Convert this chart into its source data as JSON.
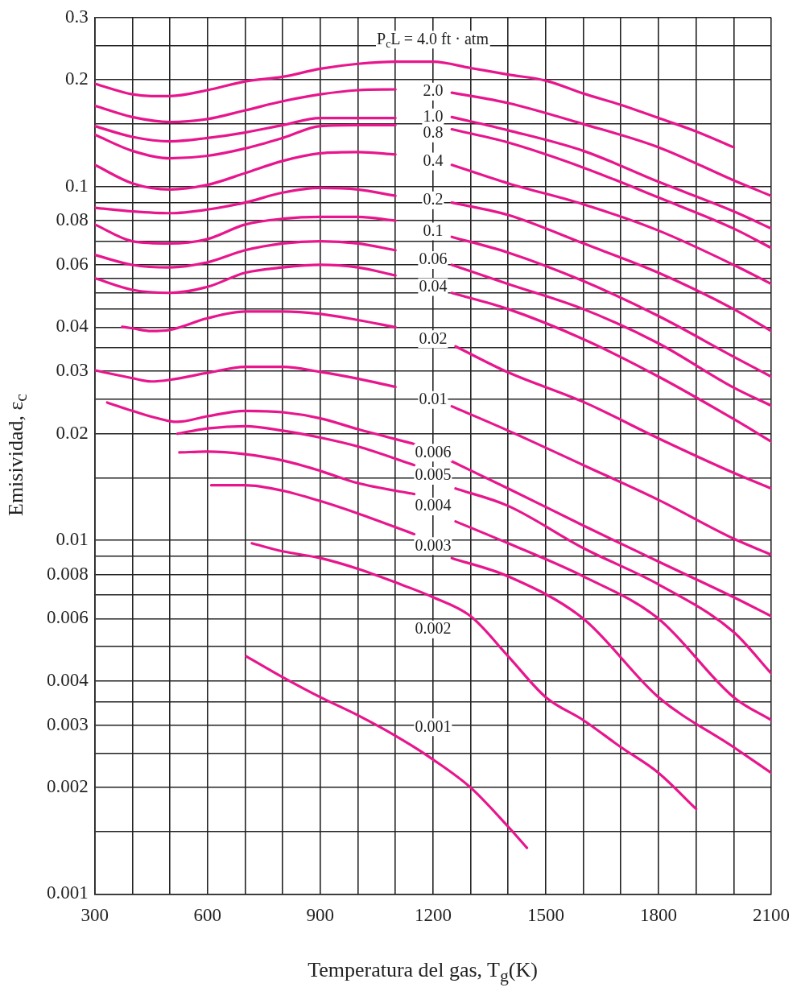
{
  "chart_data": {
    "type": "line",
    "xlabel": "Temperatura del gas, T$_{g}$(K)",
    "ylabel": "Emisividad, ε$_{c}$",
    "xlim": [
      300,
      2100
    ],
    "ylim": [
      0.001,
      0.3
    ],
    "log": "y",
    "grid": true,
    "legend": false,
    "marker": "none",
    "xticks": [
      300,
      {
        "value": 400,
        "label": null
      },
      {
        "value": 500,
        "label": null
      },
      600,
      {
        "value": 700,
        "label": null
      },
      {
        "value": 800,
        "label": null
      },
      900,
      {
        "value": 1000,
        "label": null
      },
      {
        "value": 1100,
        "label": null
      },
      1200,
      {
        "value": 1300,
        "label": null
      },
      {
        "value": 1400,
        "label": null
      },
      1500,
      {
        "value": 1600,
        "label": null
      },
      {
        "value": 1700,
        "label": null
      },
      1800,
      {
        "value": 1900,
        "label": null
      },
      {
        "value": 2000,
        "label": null
      },
      2100
    ],
    "yticks": [
      0.001,
      {
        "value": 0.0015,
        "label": null
      },
      0.002,
      {
        "value": 0.0025,
        "label": null
      },
      0.003,
      {
        "value": 0.0035,
        "label": null
      },
      0.004,
      {
        "value": 0.005,
        "label": null
      },
      0.006,
      {
        "value": 0.007,
        "label": null
      },
      0.008,
      {
        "value": 0.009,
        "label": null
      },
      0.01,
      {
        "value": 0.015,
        "label": null
      },
      0.02,
      {
        "value": 0.025,
        "label": null
      },
      0.03,
      {
        "value": 0.035,
        "label": null
      },
      0.04,
      {
        "value": 0.045,
        "label": null
      },
      {
        "value": 0.05,
        "label": null
      },
      {
        "value": 0.055,
        "label": null
      },
      0.06,
      {
        "value": 0.07,
        "label": null
      },
      0.08,
      {
        "value": 0.09,
        "label": null
      },
      0.1,
      {
        "value": 0.15,
        "label": null
      },
      0.2,
      {
        "value": 0.25,
        "label": null
      },
      0.3
    ],
    "series": [
      {
        "name": "P$_{c}$L = 4.0 ft · atm",
        "color": "#e8168c",
        "x": [
          300,
          400,
          450,
          500,
          600,
          700,
          800,
          900,
          1000,
          1100,
          1200,
          1300,
          1400,
          1500,
          1600,
          1700,
          1800,
          1900,
          2000
        ],
        "values": [
          0.195,
          0.182,
          0.18,
          0.18,
          0.187,
          0.198,
          0.204,
          0.215,
          0.222,
          0.225,
          0.225,
          0.216,
          0.207,
          0.199,
          0.183,
          0.17,
          0.156,
          0.143,
          0.129
        ]
      },
      {
        "name": "2.0",
        "color": "#e8168c",
        "x": [
          300,
          400,
          500,
          600,
          700,
          800,
          900,
          1000,
          1100,
          1200,
          1250,
          1400,
          1600,
          1800,
          2000,
          2100
        ],
        "values": [
          0.169,
          0.157,
          0.152,
          0.155,
          0.164,
          0.174,
          0.182,
          0.187,
          0.188,
          null,
          0.184,
          0.172,
          0.15,
          0.129,
          0.104,
          0.094
        ]
      },
      {
        "name": "1.0",
        "color": "#e8168c",
        "x": [
          300,
          400,
          500,
          600,
          700,
          800,
          900,
          1000,
          1100,
          1200,
          1250,
          1400,
          1600,
          1800,
          2000,
          2100
        ],
        "values": [
          0.148,
          0.138,
          0.134,
          0.137,
          0.142,
          0.149,
          0.156,
          0.156,
          0.156,
          null,
          0.157,
          0.144,
          0.126,
          0.103,
          0.085,
          0.076
        ]
      },
      {
        "name": "0.8",
        "color": "#e8168c",
        "x": [
          300,
          400,
          500,
          600,
          700,
          800,
          900,
          1000,
          1100,
          1200,
          1250,
          1400,
          1600,
          1800,
          2000,
          2100
        ],
        "values": [
          0.14,
          0.126,
          0.12,
          0.122,
          0.128,
          0.137,
          0.148,
          0.149,
          0.149,
          null,
          0.145,
          0.133,
          0.113,
          0.093,
          0.076,
          0.067
        ]
      },
      {
        "name": "0.4",
        "color": "#e8168c",
        "x": [
          300,
          400,
          500,
          600,
          700,
          800,
          900,
          1000,
          1100,
          1200,
          1250,
          1400,
          1600,
          1800,
          2000,
          2100
        ],
        "values": [
          0.115,
          0.102,
          0.098,
          0.101,
          0.109,
          0.118,
          0.124,
          0.125,
          0.123,
          null,
          0.115,
          0.102,
          0.089,
          0.075,
          0.06,
          0.053
        ]
      },
      {
        "name": "0.2",
        "color": "#e8168c",
        "x": [
          300,
          400,
          500,
          600,
          700,
          800,
          900,
          1000,
          1100,
          1200,
          1250,
          1400,
          1600,
          1800,
          2000,
          2100
        ],
        "values": [
          0.087,
          0.085,
          0.084,
          0.086,
          0.09,
          0.096,
          0.099,
          0.098,
          0.094,
          null,
          0.09,
          0.083,
          0.069,
          0.057,
          0.045,
          0.039
        ]
      },
      {
        "name": "0.1",
        "color": "#e8168c",
        "x": [
          300,
          400,
          500,
          600,
          700,
          800,
          900,
          1000,
          1100,
          1200,
          1250,
          1400,
          1600,
          1800,
          2000,
          2100
        ],
        "values": [
          0.078,
          0.07,
          0.069,
          0.071,
          0.078,
          0.081,
          0.082,
          0.082,
          0.08,
          null,
          0.072,
          0.065,
          0.054,
          0.043,
          0.033,
          0.029
        ]
      },
      {
        "name": "0.06",
        "color": "#e8168c",
        "x": [
          300,
          400,
          500,
          600,
          700,
          800,
          900,
          1000,
          1100,
          1200,
          1250,
          1400,
          1600,
          1800,
          2000,
          2100
        ],
        "values": [
          0.064,
          0.06,
          0.059,
          0.061,
          0.066,
          0.069,
          0.07,
          0.069,
          0.066,
          null,
          0.06,
          0.053,
          0.045,
          0.036,
          0.027,
          0.024
        ]
      },
      {
        "name": "0.04",
        "color": "#e8168c",
        "x": [
          300,
          400,
          500,
          600,
          700,
          800,
          900,
          1000,
          1100,
          1200,
          1250,
          1400,
          1600,
          1800,
          2000,
          2100
        ],
        "values": [
          0.055,
          0.051,
          0.05,
          0.052,
          0.057,
          0.059,
          0.06,
          0.059,
          0.056,
          null,
          0.05,
          0.045,
          0.037,
          0.029,
          0.022,
          0.019
        ]
      },
      {
        "name": "0.02",
        "color": "#e8168c",
        "x": [
          373,
          400,
          450,
          500,
          600,
          700,
          800,
          900,
          1000,
          1100,
          1200,
          1260,
          1400,
          1600,
          1800,
          2000,
          2100
        ],
        "values": [
          0.0401,
          0.0397,
          0.039,
          0.0393,
          0.0424,
          0.0443,
          0.0443,
          0.0436,
          0.0419,
          0.04,
          null,
          0.0353,
          0.0298,
          0.0246,
          0.0194,
          0.0155,
          0.014
        ]
      },
      {
        "name": "0.01",
        "color": "#e8168c",
        "x": [
          300,
          400,
          450,
          500,
          600,
          700,
          800,
          900,
          1000,
          1100,
          1200,
          1250,
          1400,
          1600,
          1800,
          2000,
          2100
        ],
        "values": [
          0.0302,
          0.0287,
          0.0281,
          0.0284,
          0.0297,
          0.0309,
          0.0309,
          0.0299,
          0.0286,
          0.0271,
          null,
          0.0239,
          0.0204,
          0.0163,
          0.013,
          0.0101,
          0.0091
        ]
      },
      {
        "name": "0.006",
        "color": "#e8168c",
        "x": [
          333,
          400,
          500,
          520,
          600,
          700,
          800,
          900,
          1000,
          1150,
          1200,
          1250,
          1400,
          1600,
          1800,
          2000,
          2100
        ],
        "values": [
          0.0245,
          0.0232,
          0.0217,
          0.0216,
          0.0224,
          0.0232,
          0.023,
          0.0221,
          0.0206,
          0.0187,
          null,
          0.0167,
          0.014,
          0.011,
          0.0087,
          0.0069,
          0.0061
        ]
      },
      {
        "name": "0.005",
        "color": "#e8168c",
        "x": [
          520,
          600,
          700,
          800,
          900,
          1000,
          1150,
          1200,
          1260,
          1400,
          1600,
          1800,
          2000,
          2100
        ],
        "values": [
          0.02,
          0.0207,
          0.021,
          0.0204,
          0.0195,
          0.0184,
          0.0163,
          null,
          0.014,
          0.0125,
          0.0095,
          0.0075,
          0.0055,
          0.0042
        ]
      },
      {
        "name": "0.004",
        "color": "#e8168c",
        "x": [
          525,
          600,
          700,
          800,
          900,
          1000,
          1150,
          1200,
          1260,
          1400,
          1600,
          1800,
          2000,
          2100
        ],
        "values": [
          0.0177,
          0.0178,
          0.0175,
          0.0168,
          0.0157,
          0.0145,
          0.0135,
          null,
          0.0113,
          0.0098,
          0.0079,
          0.006,
          0.0036,
          0.0031
        ]
      },
      {
        "name": "0.003",
        "color": "#e8168c",
        "x": [
          610,
          700,
          800,
          900,
          1000,
          1150,
          1200,
          1250,
          1400,
          1600,
          1800,
          2000,
          2100
        ],
        "values": [
          0.0143,
          0.0143,
          0.0138,
          0.0129,
          0.0119,
          0.0104,
          null,
          0.0089,
          0.0079,
          0.006,
          0.0036,
          0.0026,
          0.0022
        ]
      },
      {
        "name": "0.002",
        "color": "#e8168c",
        "x": [
          718,
          800,
          900,
          1000,
          1100,
          1200,
          1300,
          1400,
          1500,
          1600,
          1700,
          1800,
          1900
        ],
        "values": [
          0.0098,
          0.0093,
          0.0089,
          0.0083,
          0.0076,
          0.0069,
          0.0061,
          0.0047,
          0.0036,
          0.0031,
          0.0026,
          0.0022,
          0.00174
        ]
      },
      {
        "name": "0.001",
        "color": "#e8168c",
        "x": [
          703,
          800,
          900,
          1000,
          1100,
          1200,
          1300,
          1400,
          1450
        ],
        "values": [
          0.0047,
          0.0041,
          0.0036,
          0.0032,
          0.0028,
          0.0024,
          0.002,
          0.00155,
          0.00135
        ]
      }
    ]
  }
}
